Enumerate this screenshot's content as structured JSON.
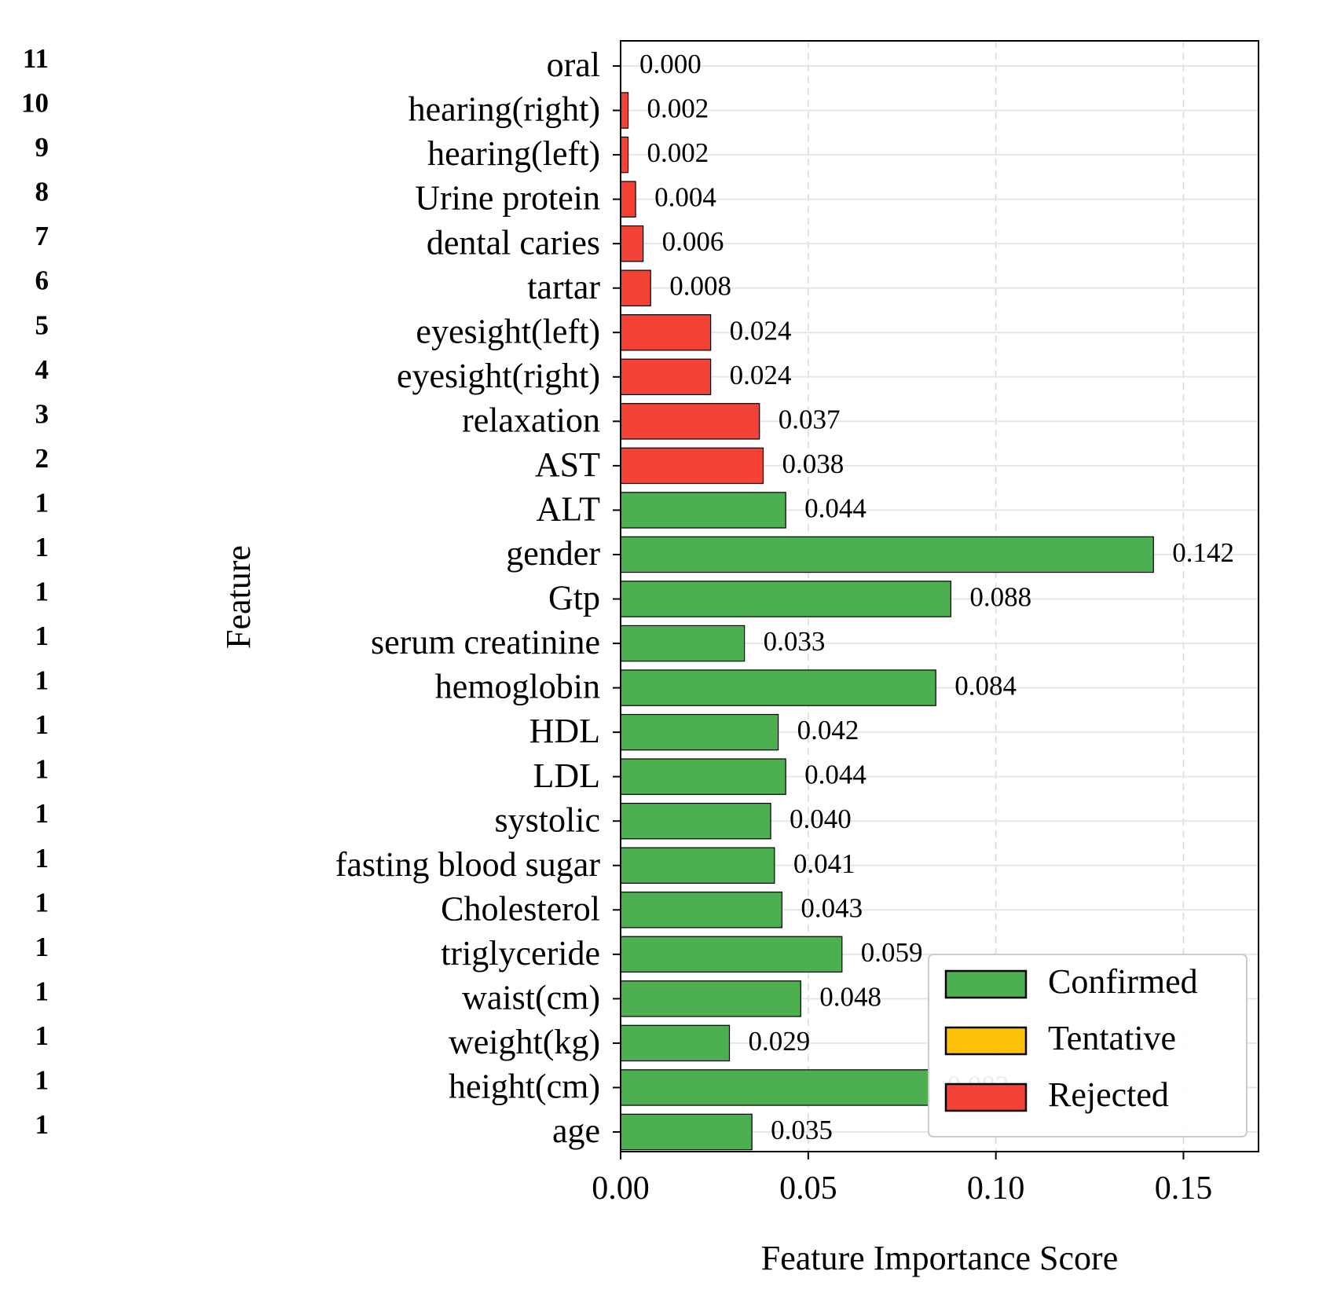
{
  "chart_data": {
    "type": "bar",
    "orientation": "horizontal",
    "title": "",
    "xlabel": "Feature Importance Score",
    "ylabel": "Feature",
    "xlim": [
      0,
      0.17
    ],
    "x_ticks": [
      0.0,
      0.05,
      0.1,
      0.15
    ],
    "x_tick_labels": [
      "0.00",
      "0.05",
      "0.10",
      "0.15"
    ],
    "grid": true,
    "legend_position": "bottom-right",
    "legend": [
      {
        "label": "Confirmed",
        "color": "#4caf50"
      },
      {
        "label": "Tentative",
        "color": "#ffc107"
      },
      {
        "label": "Rejected",
        "color": "#f44336"
      }
    ],
    "bars": [
      {
        "feature": "oral",
        "rank": "11",
        "value": 0.0,
        "label": "0.000",
        "status": "Rejected"
      },
      {
        "feature": "hearing(right)",
        "rank": "10",
        "value": 0.002,
        "label": "0.002",
        "status": "Rejected"
      },
      {
        "feature": "hearing(left)",
        "rank": "9",
        "value": 0.002,
        "label": "0.002",
        "status": "Rejected"
      },
      {
        "feature": "Urine protein",
        "rank": "8",
        "value": 0.004,
        "label": "0.004",
        "status": "Rejected"
      },
      {
        "feature": "dental caries",
        "rank": "7",
        "value": 0.006,
        "label": "0.006",
        "status": "Rejected"
      },
      {
        "feature": "tartar",
        "rank": "6",
        "value": 0.008,
        "label": "0.008",
        "status": "Rejected"
      },
      {
        "feature": "eyesight(left)",
        "rank": "5",
        "value": 0.024,
        "label": "0.024",
        "status": "Rejected"
      },
      {
        "feature": "eyesight(right)",
        "rank": "4",
        "value": 0.024,
        "label": "0.024",
        "status": "Rejected"
      },
      {
        "feature": "relaxation",
        "rank": "3",
        "value": 0.037,
        "label": "0.037",
        "status": "Rejected"
      },
      {
        "feature": "AST",
        "rank": "2",
        "value": 0.038,
        "label": "0.038",
        "status": "Rejected"
      },
      {
        "feature": "ALT",
        "rank": "1",
        "value": 0.044,
        "label": "0.044",
        "status": "Confirmed"
      },
      {
        "feature": "gender",
        "rank": "1",
        "value": 0.142,
        "label": "0.142",
        "status": "Confirmed"
      },
      {
        "feature": "Gtp",
        "rank": "1",
        "value": 0.088,
        "label": "0.088",
        "status": "Confirmed"
      },
      {
        "feature": "serum creatinine",
        "rank": "1",
        "value": 0.033,
        "label": "0.033",
        "status": "Confirmed"
      },
      {
        "feature": "hemoglobin",
        "rank": "1",
        "value": 0.084,
        "label": "0.084",
        "status": "Confirmed"
      },
      {
        "feature": "HDL",
        "rank": "1",
        "value": 0.042,
        "label": "0.042",
        "status": "Confirmed"
      },
      {
        "feature": "LDL",
        "rank": "1",
        "value": 0.044,
        "label": "0.044",
        "status": "Confirmed"
      },
      {
        "feature": "systolic",
        "rank": "1",
        "value": 0.04,
        "label": "0.040",
        "status": "Confirmed"
      },
      {
        "feature": "fasting blood sugar",
        "rank": "1",
        "value": 0.041,
        "label": "0.041",
        "status": "Confirmed"
      },
      {
        "feature": "Cholesterol",
        "rank": "1",
        "value": 0.043,
        "label": "0.043",
        "status": "Confirmed"
      },
      {
        "feature": "triglyceride",
        "rank": "1",
        "value": 0.059,
        "label": "0.059",
        "status": "Confirmed"
      },
      {
        "feature": "waist(cm)",
        "rank": "1",
        "value": 0.048,
        "label": "0.048",
        "status": "Confirmed"
      },
      {
        "feature": "weight(kg)",
        "rank": "1",
        "value": 0.029,
        "label": "0.029",
        "status": "Confirmed"
      },
      {
        "feature": "height(cm)",
        "rank": "1",
        "value": 0.082,
        "label": "0.082",
        "status": "Confirmed"
      },
      {
        "feature": "age",
        "rank": "1",
        "value": 0.035,
        "label": "0.035",
        "status": "Confirmed"
      }
    ]
  }
}
